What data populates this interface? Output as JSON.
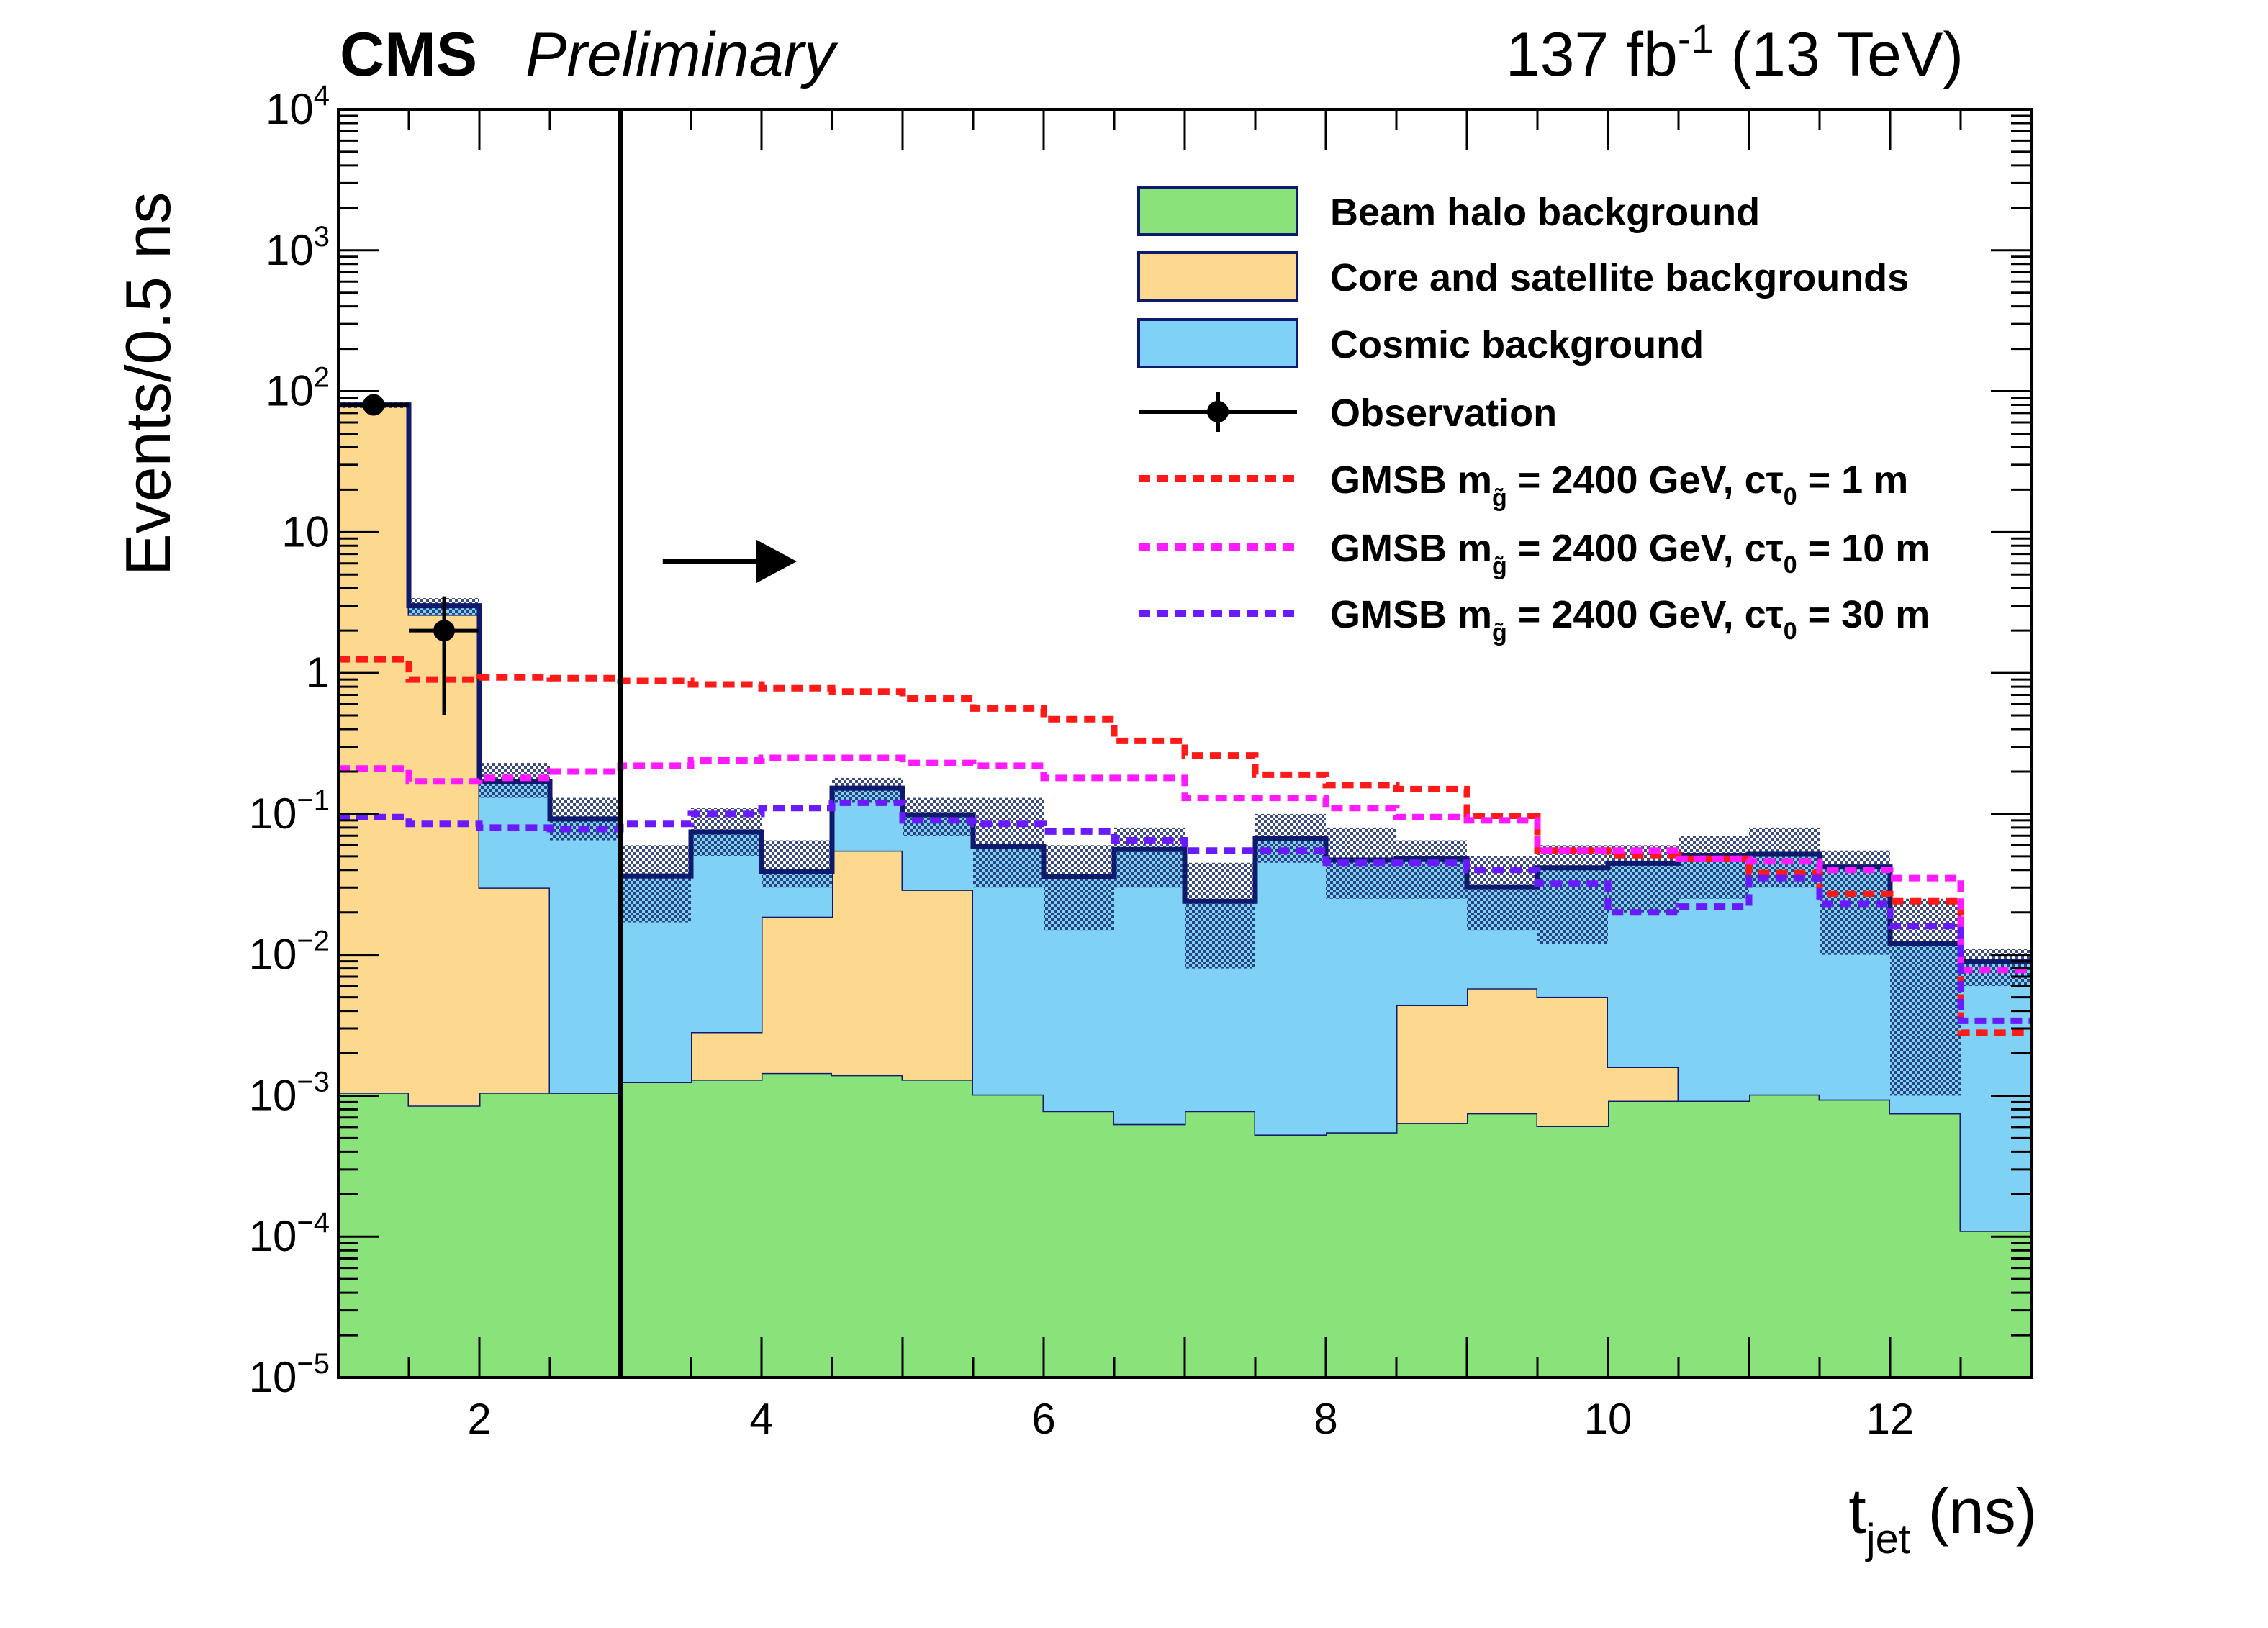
{
  "chart_data": {
    "type": "bar",
    "stacked": true,
    "experiment": "CMS",
    "status": "Preliminary",
    "lumi_main": "137 fb",
    "lumi_sup": "-1",
    "lumi_energy": " (13 TeV)",
    "xlabel_main": "t",
    "xlabel_sub": "jet",
    "xlabel_unit": " (ns)",
    "ylabel": "Events/0.5 ns",
    "xlim": [
      1,
      13
    ],
    "ylim": [
      1e-05,
      10000
    ],
    "yscale": "log",
    "grid": false,
    "legend_position": "top-right",
    "x_ticks": [
      {
        "value": 2,
        "label": "2"
      },
      {
        "value": 4,
        "label": "4"
      },
      {
        "value": 6,
        "label": "6"
      },
      {
        "value": 8,
        "label": "8"
      },
      {
        "value": 10,
        "label": "10"
      },
      {
        "value": 12,
        "label": "12"
      }
    ],
    "y_ticks": [
      {
        "exp": -5,
        "label": "10",
        "sup": "−5"
      },
      {
        "exp": -4,
        "label": "10",
        "sup": "−4"
      },
      {
        "exp": -3,
        "label": "10",
        "sup": "−3"
      },
      {
        "exp": -2,
        "label": "10",
        "sup": "−2"
      },
      {
        "exp": -1,
        "label": "10",
        "sup": "−1"
      },
      {
        "exp": 0,
        "label": "1",
        "sup": ""
      },
      {
        "exp": 1,
        "label": "10",
        "sup": ""
      },
      {
        "exp": 2,
        "label": "10",
        "sup": "2"
      },
      {
        "exp": 3,
        "label": "10",
        "sup": "3"
      },
      {
        "exp": 4,
        "label": "10",
        "sup": "4"
      }
    ],
    "bin_edges": [
      1,
      1.5,
      2,
      2.5,
      3,
      3.5,
      4,
      4.5,
      5,
      5.5,
      6,
      6.5,
      7,
      7.5,
      8,
      8.5,
      9,
      9.5,
      10,
      10.5,
      11,
      11.5,
      12,
      12.5,
      13
    ],
    "series": [
      {
        "name": "Beam halo background",
        "color": "#8ae37a",
        "values": [
          0.00105,
          0.00085,
          0.00105,
          0.00105,
          0.00125,
          0.0013,
          0.00145,
          0.0014,
          0.0013,
          0.00102,
          0.00078,
          0.00063,
          0.00078,
          0.00053,
          0.00055,
          0.00064,
          0.00075,
          0.00061,
          0.00092,
          0.00092,
          0.00102,
          0.00094,
          0.00075,
          0.00011
        ]
      },
      {
        "name": "Core and satellite backgrounds",
        "color": "#fdd990",
        "values": [
          79.9,
          2.59,
          0.0289,
          0,
          0,
          0.00153,
          0.0172,
          0.0535,
          0.0276,
          0,
          0,
          0,
          0,
          0,
          0,
          0.00376,
          0.00503,
          0.00443,
          0.00068,
          0,
          0,
          0,
          0,
          0
        ]
      },
      {
        "name": "Cosmic background",
        "color": "#7fd2f6",
        "values": [
          0,
          0.41,
          0.14,
          0.091,
          0.035,
          0.0716,
          0.0205,
          0.0975,
          0.0698,
          0.0579,
          0.0352,
          0.0553,
          0.0232,
          0.0664,
          0.0465,
          0.0436,
          0.0246,
          0.0364,
          0.0431,
          0.0499,
          0.0507,
          0.0411,
          0.0112,
          0.0088
        ]
      }
    ],
    "uncertainty_label": "",
    "uncertainty_band": [
      {
        "lo": 76,
        "hi": 84
      },
      {
        "lo": 2.6,
        "hi": 3.4
      },
      {
        "lo": 0.13,
        "hi": 0.23
      },
      {
        "lo": 0.065,
        "hi": 0.13
      },
      {
        "lo": 0.017,
        "hi": 0.06
      },
      {
        "lo": 0.05,
        "hi": 0.11
      },
      {
        "lo": 0.03,
        "hi": 0.065
      },
      {
        "lo": 0.12,
        "hi": 0.18
      },
      {
        "lo": 0.07,
        "hi": 0.13
      },
      {
        "lo": 0.03,
        "hi": 0.13
      },
      {
        "lo": 0.015,
        "hi": 0.06
      },
      {
        "lo": 0.03,
        "hi": 0.08
      },
      {
        "lo": 0.008,
        "hi": 0.045
      },
      {
        "lo": 0.045,
        "hi": 0.1
      },
      {
        "lo": 0.025,
        "hi": 0.08
      },
      {
        "lo": 0.025,
        "hi": 0.065
      },
      {
        "lo": 0.015,
        "hi": 0.05
      },
      {
        "lo": 0.012,
        "hi": 0.06
      },
      {
        "lo": 0.02,
        "hi": 0.06
      },
      {
        "lo": 0.025,
        "hi": 0.07
      },
      {
        "lo": 0.03,
        "hi": 0.08
      },
      {
        "lo": 0.01,
        "hi": 0.055
      },
      {
        "lo": 0.001,
        "hi": 0.025
      },
      {
        "lo": 0.006,
        "hi": 0.011
      }
    ],
    "observation": {
      "name": "Observation",
      "points": [
        {
          "x": 1.25,
          "y": 80,
          "xerr": 0.25,
          "ylo": 71,
          "yhi": 89
        },
        {
          "x": 1.75,
          "y": 2,
          "xerr": 0.25,
          "ylo": 0.5,
          "yhi": 3.5
        }
      ]
    },
    "signals": [
      {
        "name_prefix": "GMSB m",
        "name_sub": "g̃",
        "name_mid": " = 2400 GeV, cτ",
        "name_sub2": "0",
        "name_suffix": " = 1 m",
        "color": "#ff1a1a",
        "values": [
          1.25,
          0.9,
          0.93,
          0.92,
          0.88,
          0.83,
          0.78,
          0.74,
          0.66,
          0.56,
          0.47,
          0.33,
          0.26,
          0.19,
          0.16,
          0.15,
          0.097,
          0.055,
          0.051,
          0.048,
          0.038,
          0.027,
          0.024,
          0.0028
        ]
      },
      {
        "name_prefix": "GMSB m",
        "name_sub": "g̃",
        "name_mid": " = 2400 GeV, cτ",
        "name_sub2": "0",
        "name_suffix": " = 10 m",
        "color": "#ff1aff",
        "values": [
          0.21,
          0.17,
          0.18,
          0.2,
          0.22,
          0.24,
          0.25,
          0.25,
          0.23,
          0.22,
          0.18,
          0.18,
          0.13,
          0.13,
          0.11,
          0.095,
          0.09,
          0.055,
          0.055,
          0.048,
          0.046,
          0.04,
          0.035,
          0.0078
        ]
      },
      {
        "name_prefix": "GMSB m",
        "name_sub": "g̃",
        "name_mid": " = 2400 GeV, cτ",
        "name_sub2": "0",
        "name_suffix": " = 30 m",
        "color": "#6a1aff",
        "values": [
          0.095,
          0.085,
          0.08,
          0.078,
          0.085,
          0.1,
          0.11,
          0.12,
          0.09,
          0.085,
          0.075,
          0.065,
          0.055,
          0.055,
          0.045,
          0.045,
          0.04,
          0.032,
          0.02,
          0.022,
          0.035,
          0.023,
          0.016,
          0.0034
        ]
      }
    ],
    "cut_line": {
      "x": 3
    },
    "arrow": {
      "x_from": 3.3,
      "x_to": 4.25,
      "y": 6.2
    }
  }
}
